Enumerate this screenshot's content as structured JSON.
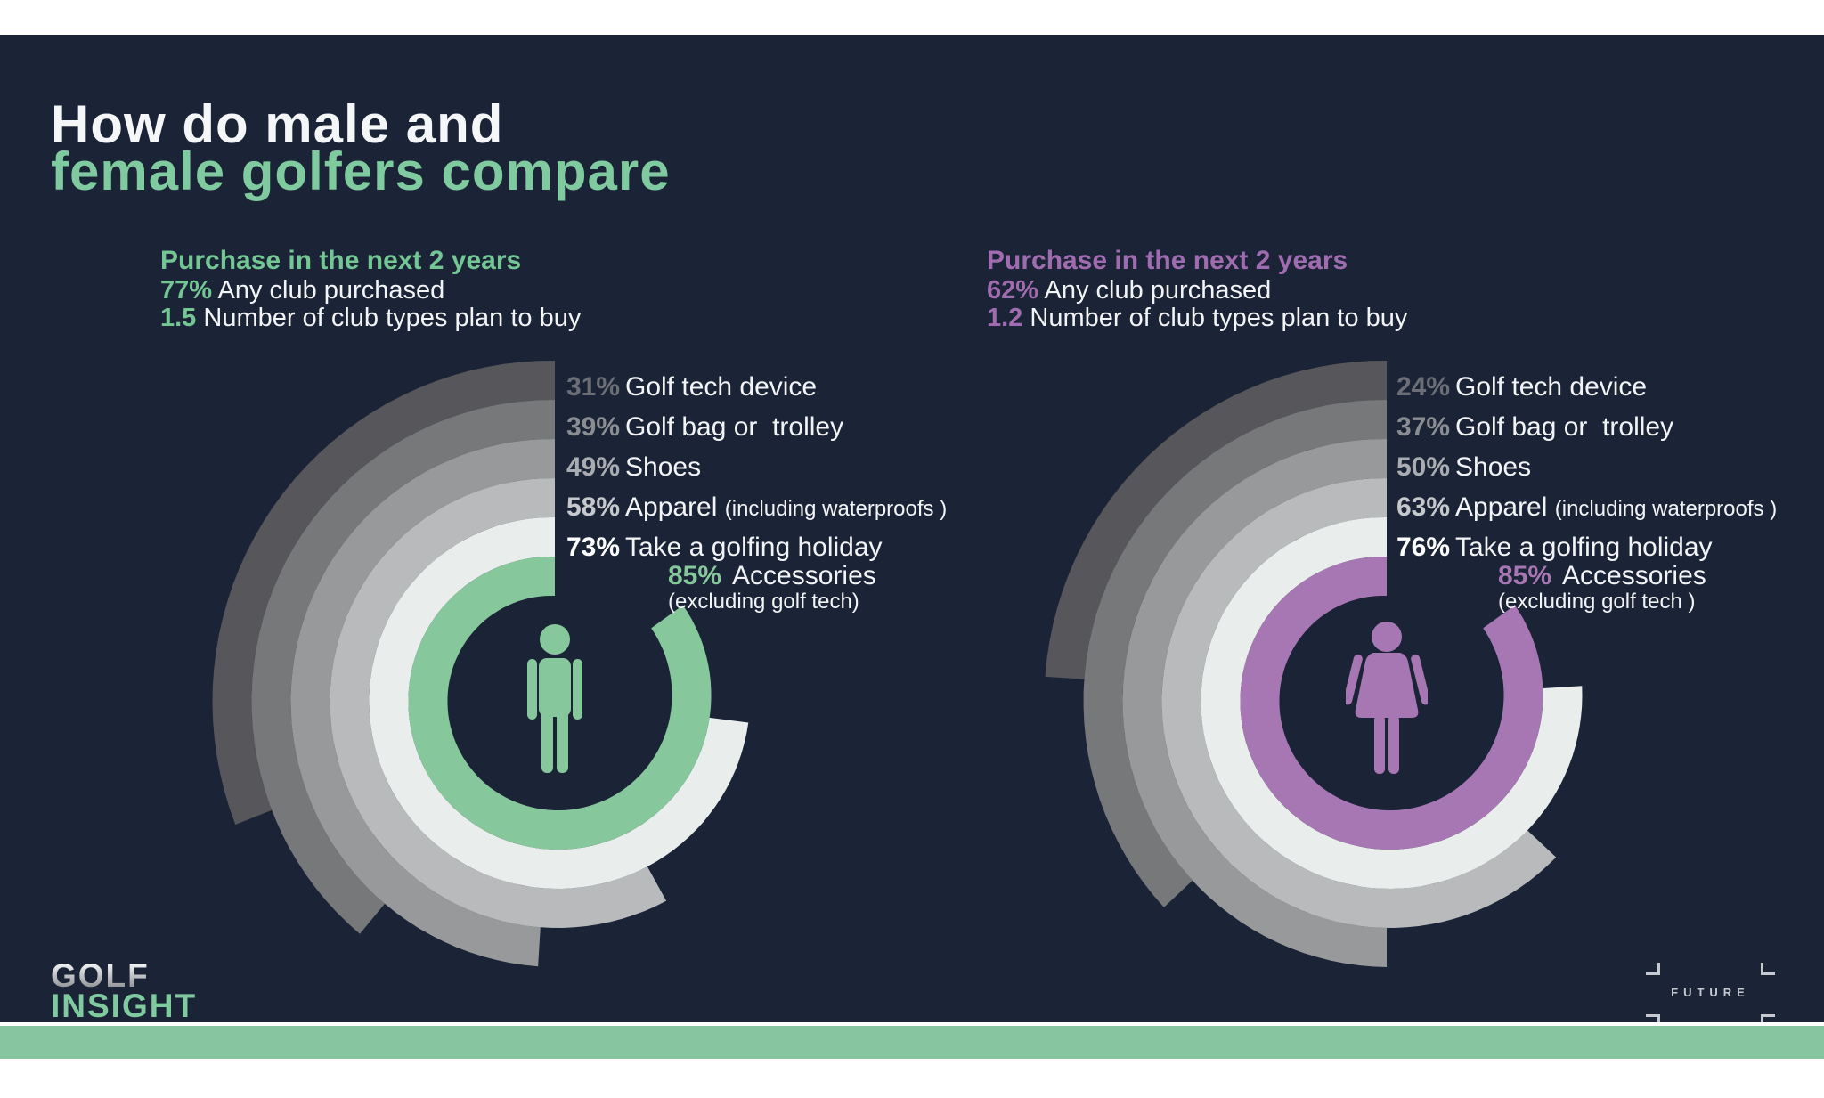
{
  "title": {
    "line1": "How do male and",
    "line2": "female golfers compare"
  },
  "colors": {
    "background": "#1b2336",
    "text_white": "#f2f4f6",
    "title_line2": "#7fcb9f",
    "bottom_bar": "#86c59f",
    "green_accent": "#86c89c",
    "green_heading": "#74c695",
    "purple_accent": "#a777b3",
    "purple_heading": "#a06cb0",
    "logo_silver": "#c9cdd2"
  },
  "chart_geometry": {
    "inner_radius": 115,
    "ring_width": 44,
    "spiral_growth": 22,
    "start": "top",
    "direction": "counterclockwise"
  },
  "chart_data": [
    {
      "type": "radial_progress_rings",
      "group": "male golfers",
      "icon": "male-figure",
      "accent": "#86c89c",
      "heading_color": "#74c695",
      "heading": "Purchase in the next 2 years",
      "stats": [
        {
          "value": "77%",
          "label": " Any club purchased"
        },
        {
          "value": "1.5",
          "label": " Number of club types plan to buy"
        }
      ],
      "rings": [
        {
          "pct": 31,
          "pct_text": "31%",
          "label": "Golf tech device",
          "color": "#57575b",
          "pct_color": "#6b6e75"
        },
        {
          "pct": 39,
          "pct_text": "39%",
          "label": "Golf bag or  trolley",
          "color": "#76787a",
          "pct_color": "#8a8d92"
        },
        {
          "pct": 49,
          "pct_text": "49%",
          "label": "Shoes",
          "color": "#97999b",
          "pct_color": "#a9acb0"
        },
        {
          "pct": 58,
          "pct_text": "58%",
          "label": "Apparel ",
          "label_note": "(including waterproofs )",
          "color": "#b8babc",
          "pct_color": "#c6c9cc"
        },
        {
          "pct": 73,
          "pct_text": "73%",
          "label": "Take a golfing holiday",
          "color": "#e9edec",
          "pct_color": "#ffffff"
        },
        {
          "pct": 85,
          "pct_text": "85%",
          "label": "Accessories",
          "label_note": "(excluding golf tech)",
          "color": "#86c89c",
          "pct_color": "#86c89c"
        }
      ]
    },
    {
      "type": "radial_progress_rings",
      "group": "female golfers",
      "icon": "female-figure",
      "accent": "#a777b3",
      "heading_color": "#a06cb0",
      "heading": "Purchase in the next 2 years",
      "stats": [
        {
          "value": "62%",
          "label": " Any club purchased"
        },
        {
          "value": "1.2",
          "label": " Number of club types plan to buy"
        }
      ],
      "rings": [
        {
          "pct": 24,
          "pct_text": "24%",
          "label": "Golf tech device",
          "color": "#57575b",
          "pct_color": "#6b6e75"
        },
        {
          "pct": 37,
          "pct_text": "37%",
          "label": "Golf bag or  trolley",
          "color": "#76787a",
          "pct_color": "#8a8d92"
        },
        {
          "pct": 50,
          "pct_text": "50%",
          "label": "Shoes",
          "color": "#97999b",
          "pct_color": "#a9acb0"
        },
        {
          "pct": 63,
          "pct_text": "63%",
          "label": "Apparel ",
          "label_note": "(including waterproofs )",
          "color": "#b8babc",
          "pct_color": "#c6c9cc"
        },
        {
          "pct": 76,
          "pct_text": "76%",
          "label": "Take a golfing holiday",
          "color": "#e9edec",
          "pct_color": "#ffffff"
        },
        {
          "pct": 85,
          "pct_text": "85%",
          "label": "Accessories",
          "label_note": "(excluding golf tech )",
          "color": "#a777b3",
          "pct_color": "#a777b3"
        }
      ]
    }
  ],
  "footer": {
    "brand_line1": "GOLF",
    "brand_line2": "INSIGHT",
    "future_logo_text": "FUTURE"
  }
}
